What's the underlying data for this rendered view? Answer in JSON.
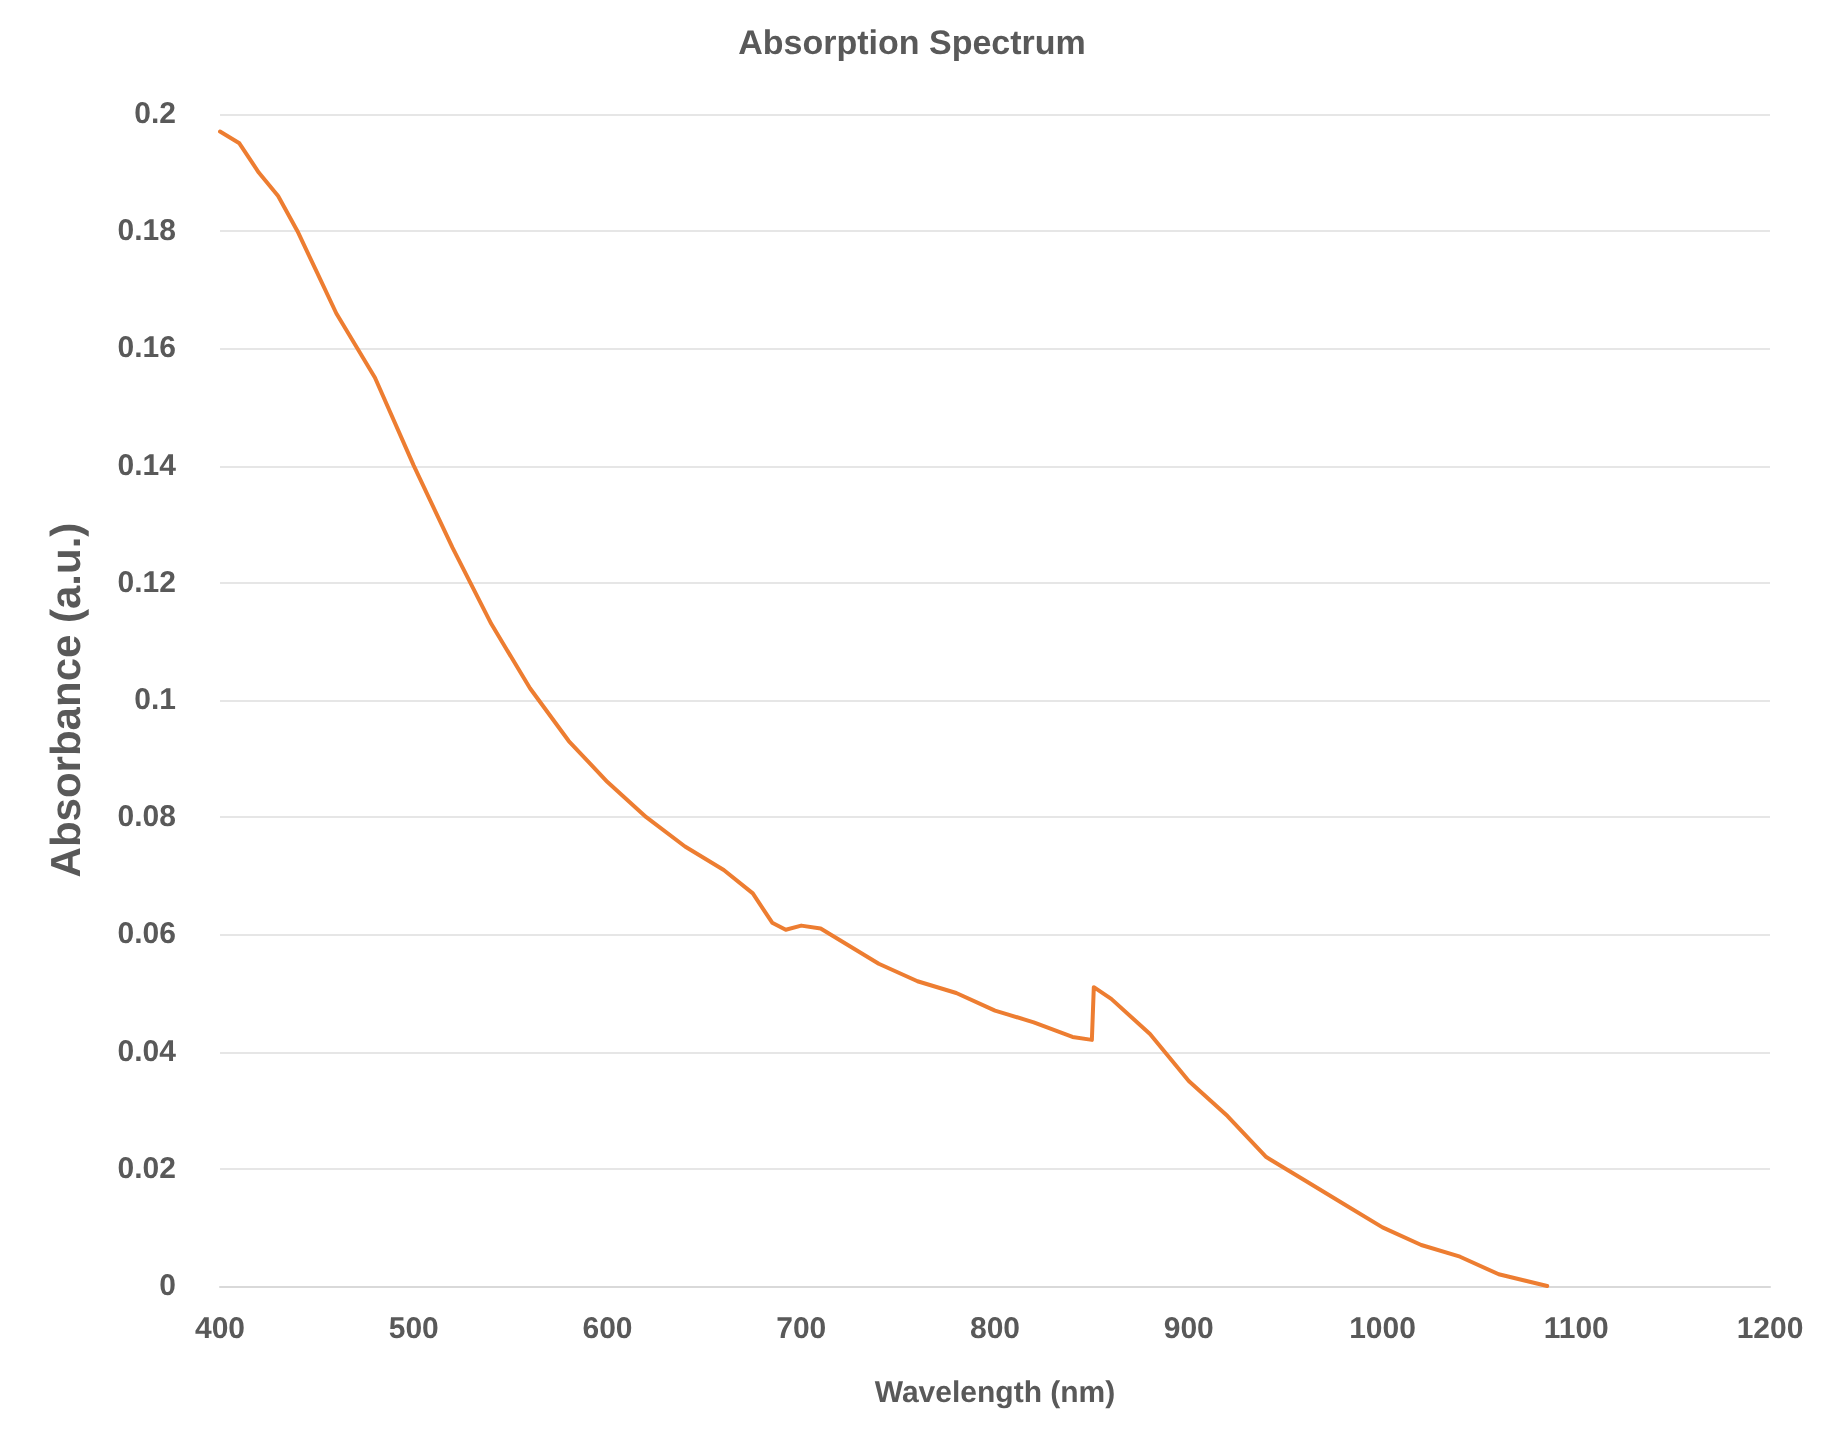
{
  "chart_data": {
    "type": "line",
    "title": "Absorption Spectrum",
    "xlabel": "Wavelength (nm)",
    "ylabel": "Absorbance (a.u.)",
    "x": [
      400,
      410,
      420,
      430,
      440,
      450,
      460,
      480,
      500,
      520,
      540,
      560,
      580,
      600,
      620,
      640,
      660,
      675,
      685,
      692,
      700,
      710,
      720,
      740,
      760,
      780,
      800,
      820,
      840,
      850,
      851,
      860,
      880,
      900,
      920,
      940,
      960,
      980,
      1000,
      1020,
      1040,
      1060,
      1085
    ],
    "series": [
      {
        "color": "#ed7d31",
        "values": [
          0.197,
          0.195,
          0.19,
          0.186,
          0.18,
          0.173,
          0.166,
          0.155,
          0.14,
          0.126,
          0.113,
          0.102,
          0.093,
          0.086,
          0.08,
          0.075,
          0.071,
          0.067,
          0.062,
          0.0608,
          0.0615,
          0.061,
          0.059,
          0.055,
          0.052,
          0.05,
          0.047,
          0.045,
          0.0425,
          0.042,
          0.051,
          0.049,
          0.043,
          0.035,
          0.029,
          0.022,
          0.018,
          0.014,
          0.01,
          0.007,
          0.005,
          0.002,
          0.0
        ]
      }
    ],
    "xlim": [
      400,
      1200
    ],
    "xticks": [
      400,
      500,
      600,
      700,
      800,
      900,
      1000,
      1100,
      1200
    ],
    "ylim": [
      0,
      0.2
    ],
    "yticks": [
      0,
      0.02,
      0.04,
      0.06,
      0.08,
      0.1,
      0.12,
      0.14,
      0.16,
      0.18,
      0.2
    ],
    "grid": "y",
    "marker": "none",
    "line_style": "solid"
  }
}
